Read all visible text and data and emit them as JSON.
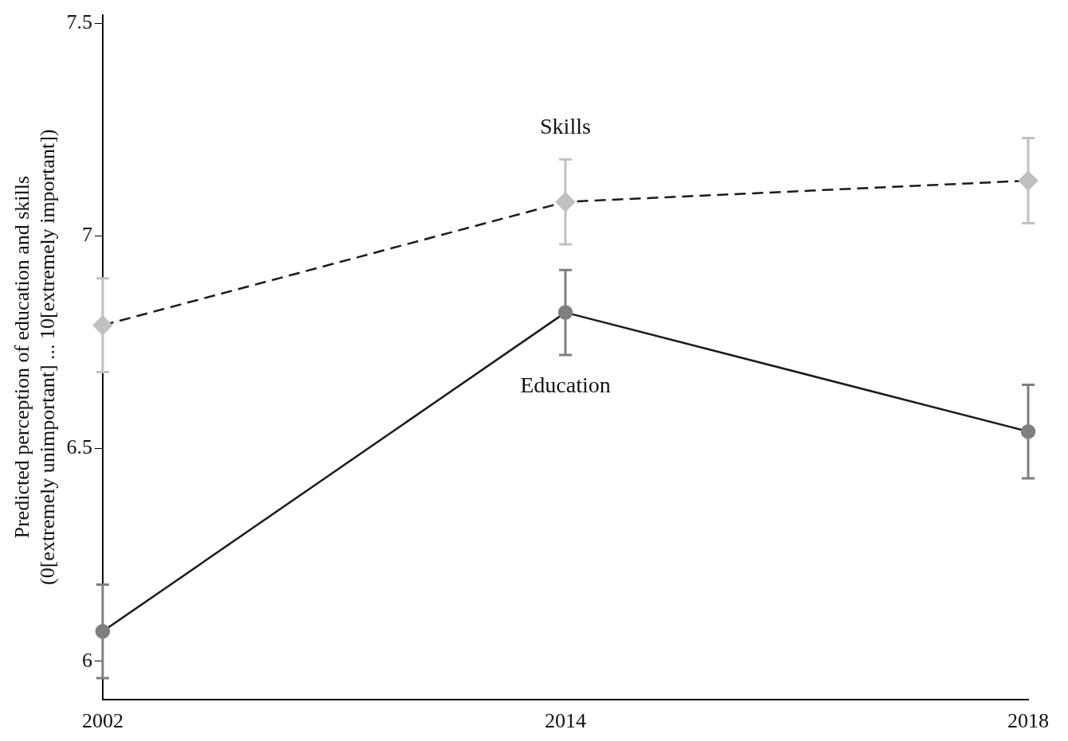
{
  "chart_data": {
    "type": "line",
    "ylabel": "Predicted perception of education and skills\n(0[extremely unimportant] ... 10[extremely important])",
    "categories": [
      "2002",
      "2014",
      "2018"
    ],
    "series": [
      {
        "name": "Skills",
        "color": "#c0c0c0",
        "values": [
          6.79,
          7.08,
          7.13
        ],
        "errors": [
          0.11,
          0.1,
          0.1
        ],
        "marker": "diamond",
        "line_style": "dashed"
      },
      {
        "name": "Education",
        "color": "#7f7f7f",
        "values": [
          6.07,
          6.82,
          6.54
        ],
        "errors": [
          0.11,
          0.1,
          0.11
        ],
        "marker": "circle",
        "line_style": "solid"
      }
    ],
    "ylim": [
      5.91,
      7.52
    ],
    "yticks": [
      6,
      6.5,
      7,
      7.5
    ],
    "grid": false,
    "legend": false
  }
}
